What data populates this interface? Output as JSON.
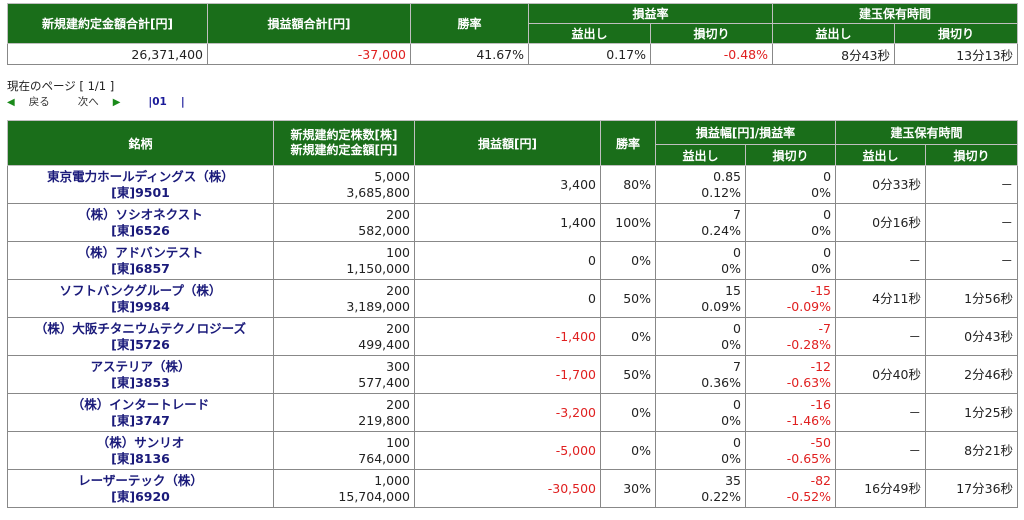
{
  "summary": {
    "headers": {
      "total_amount": "新規建約定金額合計[円]",
      "pnl_total": "損益額合計[円]",
      "win_rate": "勝率",
      "pnl_rate": "損益率",
      "hold_time": "建玉保有時間",
      "profit": "益出し",
      "loss": "損切り"
    },
    "values": {
      "total_amount": "26,371,400",
      "pnl_total": "-37,000",
      "win_rate": "41.67%",
      "profit_rate": "0.17%",
      "loss_rate": "-0.48%",
      "profit_time": "8分43秒",
      "loss_time": "13分13秒"
    }
  },
  "pager": {
    "current_label": "現在のページ [ 1/1 ]",
    "back": "戻る",
    "next": "次へ",
    "pages": "01"
  },
  "detail": {
    "headers": {
      "name": "銘柄",
      "shares": "新規建約定株数[株]",
      "amount": "新規建約定金額[円]",
      "pnl": "損益額[円]",
      "win_rate": "勝率",
      "pnl_width_rate": "損益幅[円]/損益率",
      "hold_time": "建玉保有時間",
      "profit": "益出し",
      "loss": "損切り"
    },
    "rows": [
      {
        "name": "東京電力ホールディングス（株）",
        "code": "[東]9501",
        "shares": "5,000",
        "amount": "3,685,800",
        "pnl": "3,400",
        "win": "80%",
        "pw": "0.85",
        "pr": "0.12%",
        "lw": "0",
        "lr": "0%",
        "pt": "0分33秒",
        "lt": "－"
      },
      {
        "name": "（株）ソシオネクスト",
        "code": "[東]6526",
        "shares": "200",
        "amount": "582,000",
        "pnl": "1,400",
        "win": "100%",
        "pw": "7",
        "pr": "0.24%",
        "lw": "0",
        "lr": "0%",
        "pt": "0分16秒",
        "lt": "－"
      },
      {
        "name": "（株）アドバンテスト",
        "code": "[東]6857",
        "shares": "100",
        "amount": "1,150,000",
        "pnl": "0",
        "win": "0%",
        "pw": "0",
        "pr": "0%",
        "lw": "0",
        "lr": "0%",
        "pt": "－",
        "lt": "－"
      },
      {
        "name": "ソフトバンクグループ（株）",
        "code": "[東]9984",
        "shares": "200",
        "amount": "3,189,000",
        "pnl": "0",
        "win": "50%",
        "pw": "15",
        "pr": "0.09%",
        "lw": "-15",
        "lr": "-0.09%",
        "pt": "4分11秒",
        "lt": "1分56秒"
      },
      {
        "name": "（株）大阪チタニウムテクノロジーズ",
        "code": "[東]5726",
        "shares": "200",
        "amount": "499,400",
        "pnl": "-1,400",
        "win": "0%",
        "pw": "0",
        "pr": "0%",
        "lw": "-7",
        "lr": "-0.28%",
        "pt": "－",
        "lt": "0分43秒"
      },
      {
        "name": "アステリア（株）",
        "code": "[東]3853",
        "shares": "300",
        "amount": "577,400",
        "pnl": "-1,700",
        "win": "50%",
        "pw": "7",
        "pr": "0.36%",
        "lw": "-12",
        "lr": "-0.63%",
        "pt": "0分40秒",
        "lt": "2分46秒"
      },
      {
        "name": "（株）インタートレード",
        "code": "[東]3747",
        "shares": "200",
        "amount": "219,800",
        "pnl": "-3,200",
        "win": "0%",
        "pw": "0",
        "pr": "0%",
        "lw": "-16",
        "lr": "-1.46%",
        "pt": "－",
        "lt": "1分25秒"
      },
      {
        "name": "（株）サンリオ",
        "code": "[東]8136",
        "shares": "100",
        "amount": "764,000",
        "pnl": "-5,000",
        "win": "0%",
        "pw": "0",
        "pr": "0%",
        "lw": "-50",
        "lr": "-0.65%",
        "pt": "－",
        "lt": "8分21秒"
      },
      {
        "name": "レーザーテック（株）",
        "code": "[東]6920",
        "shares": "1,000",
        "amount": "15,704,000",
        "pnl": "-30,500",
        "win": "30%",
        "pw": "35",
        "pr": "0.22%",
        "lw": "-82",
        "lr": "-0.52%",
        "pt": "16分49秒",
        "lt": "17分36秒"
      }
    ]
  }
}
